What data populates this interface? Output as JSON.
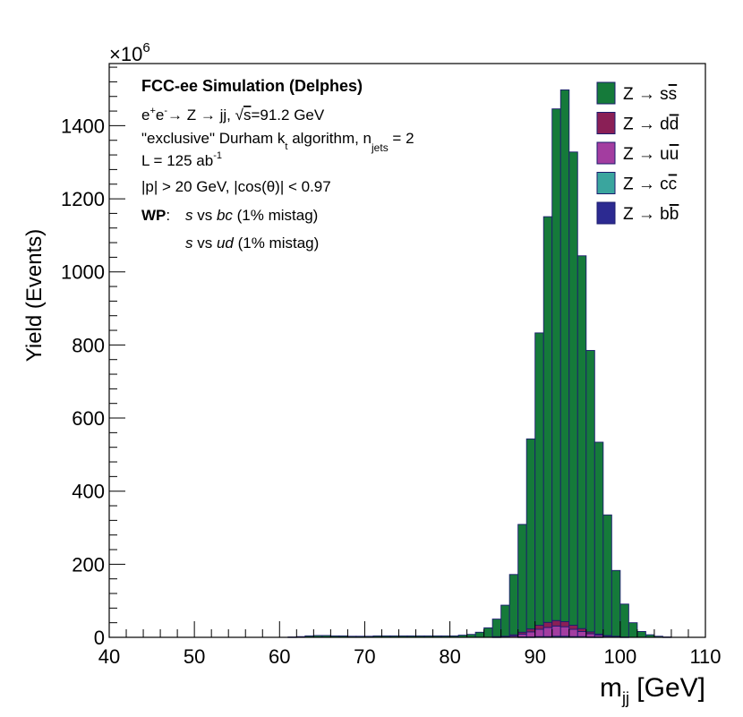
{
  "chart_data": {
    "type": "bar",
    "subtype": "stacked-histogram",
    "xlabel_main": "m",
    "xlabel_sub": "jj",
    "xlabel_unit": " [GeV]",
    "ylabel": "Yield (Events)",
    "y_exponent_base": "×10",
    "y_exponent_power": "6",
    "xlim": [
      40,
      110
    ],
    "ylim": [
      0,
      1570
    ],
    "x_ticks": [
      "40",
      "50",
      "60",
      "70",
      "80",
      "90",
      "100",
      "110"
    ],
    "y_ticks": [
      "0",
      "200",
      "400",
      "600",
      "800",
      "1000",
      "1200",
      "1400"
    ],
    "bin_width": 1,
    "bins_start": 40,
    "stack_order": [
      "Z → b̅b",
      "Z → c̅c",
      "Z → u̅u",
      "Z → d̅d",
      "Z → s̅s"
    ],
    "series": [
      {
        "name": "Z → bb̅",
        "color": "#2c2a91",
        "values": [
          0,
          0,
          0,
          0,
          0,
          0,
          0,
          0,
          0,
          0,
          0,
          0,
          0,
          0,
          0,
          0,
          0,
          0,
          0,
          0,
          0,
          0,
          0,
          0,
          0,
          0,
          0,
          0,
          0,
          0,
          0,
          0,
          0,
          0,
          0,
          0,
          0,
          0,
          0,
          0,
          0,
          0,
          0,
          0,
          0,
          0,
          0,
          0,
          0,
          0,
          0,
          0,
          0,
          0,
          0,
          0,
          0,
          0,
          0,
          0,
          0,
          0,
          0,
          0,
          0,
          0,
          0,
          0,
          0,
          0
        ]
      },
      {
        "name": "Z → cc̅",
        "color": "#3aa59e",
        "values": [
          0,
          0,
          0,
          0,
          0,
          0,
          0,
          0,
          0,
          0,
          0,
          0,
          0,
          0,
          0,
          0,
          0,
          0,
          0,
          0,
          0,
          0,
          0,
          0,
          0,
          0,
          0,
          0,
          0,
          0,
          0,
          0,
          0,
          0,
          0,
          0,
          0,
          0,
          0,
          0,
          0,
          0,
          0,
          0,
          0,
          0,
          0,
          0,
          1,
          1,
          2,
          2,
          3,
          3,
          2,
          2,
          1,
          1,
          0,
          0,
          0,
          0,
          0,
          0,
          0,
          0,
          0,
          0,
          0,
          0
        ]
      },
      {
        "name": "Z → uu̅",
        "color": "#a33da0",
        "values": [
          0,
          0,
          0,
          0,
          0,
          0,
          0,
          0,
          0,
          0,
          0,
          0,
          0,
          0,
          0,
          0,
          0,
          0,
          0,
          0,
          0,
          0,
          0,
          0,
          0,
          0,
          0,
          0,
          0,
          0,
          0,
          0,
          0,
          0,
          0,
          0,
          0,
          0,
          0,
          0,
          0,
          0,
          0,
          0,
          0,
          1,
          2,
          4,
          8,
          14,
          20,
          25,
          28,
          26,
          20,
          14,
          9,
          5,
          3,
          2,
          1,
          0,
          0,
          0,
          0,
          0,
          0,
          0,
          0,
          0
        ]
      },
      {
        "name": "Z → dd̅",
        "color": "#8a1f56",
        "values": [
          0,
          0,
          0,
          0,
          0,
          0,
          0,
          0,
          0,
          0,
          0,
          0,
          0,
          0,
          0,
          0,
          0,
          0,
          0,
          0,
          0,
          0,
          0,
          0,
          0,
          0,
          0,
          0,
          0,
          0,
          0,
          0,
          0,
          0,
          0,
          0,
          0,
          0,
          0,
          0,
          0,
          0,
          0,
          0,
          0,
          1,
          1,
          3,
          5,
          8,
          11,
          14,
          15,
          14,
          11,
          8,
          5,
          3,
          2,
          1,
          0,
          0,
          0,
          0,
          0,
          0,
          0,
          0,
          0,
          0
        ]
      },
      {
        "name": "Z → ss̅",
        "color": "#157a3a",
        "values": [
          0,
          0,
          0,
          0,
          0,
          0,
          0,
          0,
          0,
          0,
          0,
          0,
          0,
          0,
          0,
          0,
          0,
          0,
          0,
          0,
          0,
          1,
          2,
          4,
          5,
          5,
          4,
          4,
          3,
          3,
          3,
          4,
          4,
          4,
          4,
          4,
          4,
          4,
          4,
          4,
          4,
          6,
          8,
          14,
          26,
          48,
          85,
          165,
          295,
          520,
          800,
          1110,
          1400,
          1455,
          1295,
          1020,
          770,
          525,
          330,
          180,
          90,
          40,
          16,
          7,
          3,
          1,
          0,
          0,
          0,
          0
        ]
      }
    ]
  },
  "legend": [
    {
      "pre": "Z → s",
      "bar": "s",
      "color": "#157a3a"
    },
    {
      "pre": "Z → d",
      "bar": "d",
      "color": "#8a1f56"
    },
    {
      "pre": "Z → u",
      "bar": "u",
      "color": "#a33da0"
    },
    {
      "pre": "Z → c",
      "bar": "c",
      "color": "#3aa59e"
    },
    {
      "pre": "Z → b",
      "bar": "b",
      "color": "#2c2a91"
    }
  ],
  "info": {
    "title": "FCC-ee Simulation (Delphes)",
    "line1_e1": "e",
    "line1_e1_sup": "+",
    "line1_e2": "e",
    "line1_e2_sup": "-",
    "line1_rest": "→ Z → jj, ",
    "line1_sqrt": "√",
    "line1_s": "s",
    "line1_end": "=91.2 GeV",
    "line2_a": "\"exclusive\" Durham k",
    "line2_a_sub": "t",
    "line2_b": " algorithm, n",
    "line2_b_sub": "jets",
    "line2_c": " = 2",
    "line3": "L = 125 ab",
    "line3_sup": "-1",
    "line4": "|p| > 20 GeV, |cos(θ)| < 0.97",
    "wp_label": "WP",
    "wp_colon": ":",
    "wp1_s": "s",
    "wp1_vs": " vs ",
    "wp1_bc": "bc",
    "wp1_rest": " (1% mistag)",
    "wp2_s": "s",
    "wp2_vs": " vs ",
    "wp2_ud": "ud",
    "wp2_rest": " (1% mistag)"
  }
}
